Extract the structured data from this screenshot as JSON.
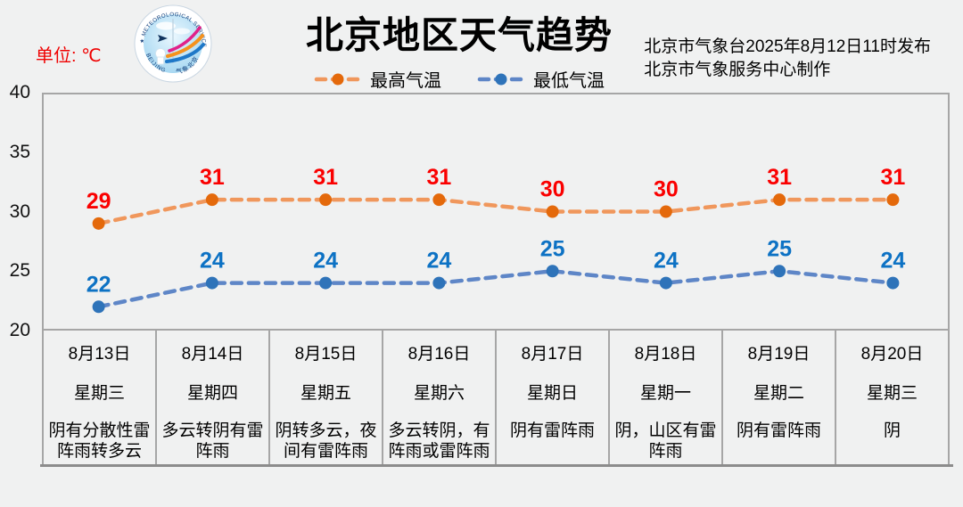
{
  "page": {
    "background": "#f0f1f1"
  },
  "header": {
    "unit_label": "单位: ℃",
    "title": "北京地区天气趋势",
    "publisher_line1": "北京市气象台2025年8月12日11时发布",
    "publisher_line2": "北京市气象服务中心制作",
    "logo": {
      "ring_top": "★ METEOROLOGICAL SERVICE ★",
      "ring_bottom_left": "BEIJING",
      "ring_bottom_right": "气象北京"
    }
  },
  "legend": [
    {
      "label": "最高气温",
      "dash_color": "#f0975c",
      "marker_color": "#e4690b"
    },
    {
      "label": "最低气温",
      "dash_color": "#5e86c7",
      "marker_color": "#2e73b9"
    }
  ],
  "chart_data": {
    "type": "line",
    "title": "北京地区天气趋势",
    "x": [
      "8月13日",
      "8月14日",
      "8月15日",
      "8月16日",
      "8月17日",
      "8月18日",
      "8月19日",
      "8月20日"
    ],
    "series": [
      {
        "name": "最高气温",
        "values": [
          29,
          31,
          31,
          31,
          30,
          30,
          31,
          31
        ],
        "line_style": "dashed",
        "line_color": "#f0975c",
        "marker_color": "#e4690b",
        "label_color": "#fa0000"
      },
      {
        "name": "最低气温",
        "values": [
          22,
          24,
          24,
          24,
          25,
          24,
          25,
          24
        ],
        "line_style": "dashed",
        "line_color": "#5e86c7",
        "marker_color": "#2e73b9",
        "label_color": "#0d72c4"
      }
    ],
    "unit": "℃",
    "ylim": [
      20,
      40
    ],
    "yticks": [
      20,
      25,
      30,
      35,
      40
    ],
    "grid": false,
    "legend_position": "top-center"
  },
  "table": {
    "days": [
      {
        "date": "8月13日",
        "weekday": "星期三",
        "weather": "阴有分散性雷阵雨转多云"
      },
      {
        "date": "8月14日",
        "weekday": "星期四",
        "weather": "多云转阴有雷阵雨"
      },
      {
        "date": "8月15日",
        "weekday": "星期五",
        "weather": "阴转多云，夜间有雷阵雨"
      },
      {
        "date": "8月16日",
        "weekday": "星期六",
        "weather": "多云转阴，有阵雨或雷阵雨"
      },
      {
        "date": "8月17日",
        "weekday": "星期日",
        "weather": "阴有雷阵雨"
      },
      {
        "date": "8月18日",
        "weekday": "星期一",
        "weather": "阴，山区有雷阵雨"
      },
      {
        "date": "8月19日",
        "weekday": "星期二",
        "weather": "阴有雷阵雨"
      },
      {
        "date": "8月20日",
        "weekday": "星期三",
        "weather": "阴"
      }
    ]
  }
}
